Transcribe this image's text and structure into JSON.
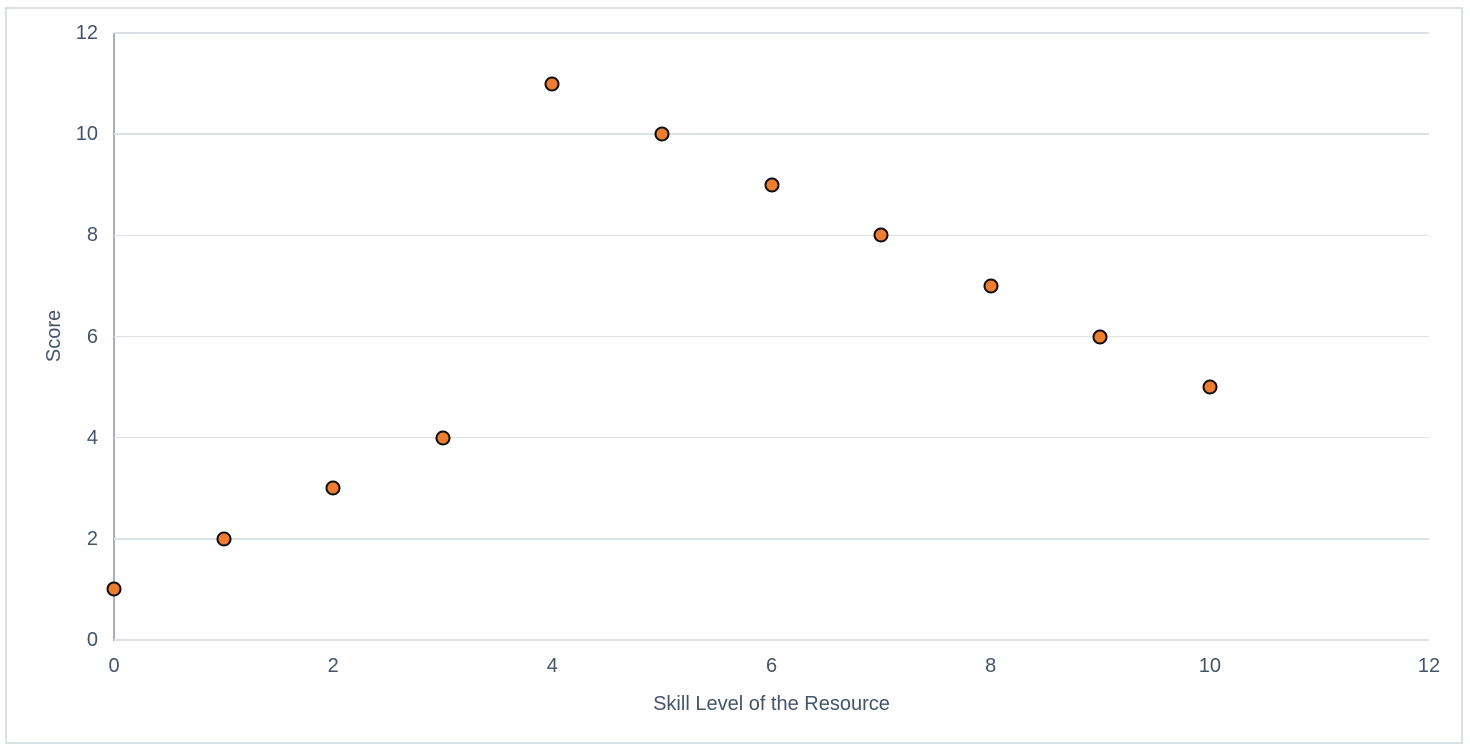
{
  "chart_data": {
    "type": "scatter",
    "title": "",
    "xlabel": "Skill Level of the Resource",
    "ylabel": "Score",
    "points": [
      {
        "x": 0,
        "y": 1
      },
      {
        "x": 1,
        "y": 2
      },
      {
        "x": 2,
        "y": 3
      },
      {
        "x": 3,
        "y": 4
      },
      {
        "x": 4,
        "y": 11
      },
      {
        "x": 5,
        "y": 10
      },
      {
        "x": 6,
        "y": 9
      },
      {
        "x": 7,
        "y": 8
      },
      {
        "x": 8,
        "y": 7
      },
      {
        "x": 9,
        "y": 6
      },
      {
        "x": 10,
        "y": 5
      }
    ],
    "xlim": [
      0,
      12
    ],
    "ylim": [
      0,
      12
    ],
    "x_ticks": [
      0,
      2,
      4,
      6,
      8,
      10,
      12
    ],
    "y_ticks": [
      0,
      2,
      4,
      6,
      8,
      10,
      12
    ],
    "grid": "horizontal",
    "legend": "none",
    "colors": {
      "text": "#44546A",
      "gridline": "#DCE1E8",
      "axis_line": "#A6B0BF",
      "marker_fill": "#ED7D31",
      "marker_stroke": "#0D0D0D",
      "frame_border": "#DBE0E6",
      "background": "#FFFFFF"
    }
  }
}
